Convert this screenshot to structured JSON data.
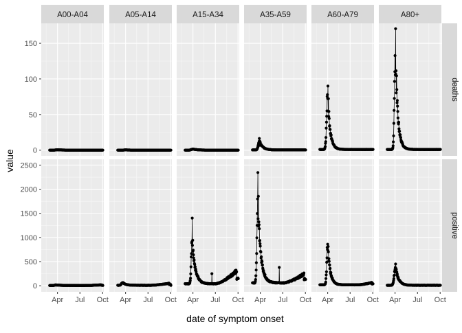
{
  "chart_data": {
    "type": "line",
    "ylabel": "value",
    "xlabel": "date of symptom onset",
    "x_ticks": [
      "Apr",
      "Jul",
      "Oct"
    ],
    "x_domain": [
      "2020-01-26",
      "2020-10-06"
    ],
    "age_groups": [
      "A00-A04",
      "A05-A14",
      "A15-A34",
      "A35-A59",
      "A60-A79",
      "A80+"
    ],
    "rows": [
      {
        "strip": "deaths",
        "ylim": [
          -8,
          178
        ],
        "y_ticks": [
          0,
          50,
          100,
          150
        ],
        "panels": [
          {
            "group": "A00-A04",
            "peak_date": "2020-04-01",
            "peak": 0.5,
            "base": 0,
            "rise_days": 10,
            "decay_days": 25,
            "peak_extra": [],
            "second_wave": null,
            "spikes": []
          },
          {
            "group": "A05-A14",
            "peak_date": "2020-04-01",
            "peak": 0.3,
            "base": 0,
            "rise_days": 10,
            "decay_days": 25,
            "peak_extra": [],
            "second_wave": null,
            "spikes": []
          },
          {
            "group": "A15-A34",
            "peak_date": "2020-04-01",
            "peak": 1.5,
            "base": 0,
            "rise_days": 9,
            "decay_days": 20,
            "peak_extra": [],
            "second_wave": null,
            "spikes": []
          },
          {
            "group": "A35-A59",
            "peak_date": "2020-03-28",
            "peak": 12,
            "base": 0.3,
            "rise_days": 6,
            "decay_days": 14,
            "peak_extra": [
              4,
              -5,
              3,
              -3,
              2
            ],
            "second_wave": null,
            "spikes": []
          },
          {
            "group": "A60-A79",
            "peak_date": "2020-04-01",
            "peak": 75,
            "base": 1,
            "rise_days": 6,
            "decay_days": 10,
            "peak_extra": [
              -10,
              13,
              -8,
              10,
              -6,
              5
            ],
            "second_wave": null,
            "spikes": []
          },
          {
            "group": "A80+",
            "peak_date": "2020-04-02",
            "peak": 140,
            "base": 1,
            "rise_days": 5,
            "decay_days": 10,
            "peak_extra": [
              -25,
              30,
              -18,
              20,
              -15,
              10
            ],
            "second_wave": null,
            "spikes": []
          }
        ]
      },
      {
        "strip": "positive",
        "ylim": [
          -125,
          2620
        ],
        "y_ticks": [
          0,
          500,
          1000,
          1500,
          2000,
          2500
        ],
        "panels": [
          {
            "group": "A00-A04",
            "peak_date": "2020-03-25",
            "peak": 18,
            "base": 6,
            "rise_days": 6,
            "decay_days": 20,
            "peak_extra": [],
            "second_wave": {
              "start": "2020-07-20",
              "end": "2020-10-01",
              "peak": 14
            },
            "spikes": []
          },
          {
            "group": "A05-A14",
            "peak_date": "2020-03-20",
            "peak": 70,
            "base": 10,
            "rise_days": 6,
            "decay_days": 12,
            "peak_extra": [],
            "second_wave": {
              "start": "2020-07-10",
              "end": "2020-10-01",
              "peak": 45
            },
            "spikes": []
          },
          {
            "group": "A15-A34",
            "peak_date": "2020-03-29",
            "peak": 1000,
            "base": 40,
            "rise_days": 5,
            "decay_days": 12,
            "peak_extra": [
              330,
              -150,
              100,
              -80
            ],
            "second_wave": {
              "start": "2020-07-01",
              "end": "2020-10-02",
              "peak": 300
            },
            "spikes": [
              {
                "date": "2020-06-17",
                "value": 250
              }
            ]
          },
          {
            "group": "A35-A59",
            "peak_date": "2020-03-22",
            "peak": 1750,
            "base": 60,
            "rise_days": 5,
            "decay_days": 12,
            "peak_extra": [
              680,
              -300,
              330,
              -200,
              150
            ],
            "second_wave": {
              "start": "2020-07-05",
              "end": "2020-10-02",
              "peak": 210
            },
            "spikes": [
              {
                "date": "2020-06-17",
                "value": 380
              }
            ]
          },
          {
            "group": "A60-A79",
            "peak_date": "2020-04-01",
            "peak": 850,
            "base": 20,
            "rise_days": 5,
            "decay_days": 10,
            "peak_extra": [
              120,
              -80,
              60
            ],
            "second_wave": {
              "start": "2020-08-01",
              "end": "2020-10-02",
              "peak": 50
            },
            "spikes": []
          },
          {
            "group": "A80+",
            "peak_date": "2020-04-03",
            "peak": 380,
            "base": 10,
            "rise_days": 7,
            "decay_days": 12,
            "peak_extra": [
              40,
              -20
            ],
            "second_wave": null,
            "spikes": []
          }
        ]
      }
    ]
  }
}
